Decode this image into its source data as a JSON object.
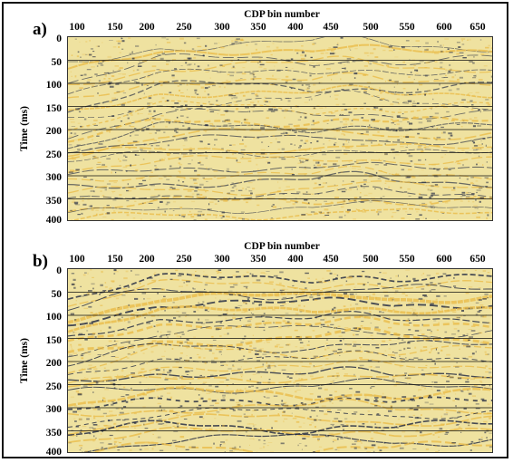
{
  "panels": [
    {
      "id": "a",
      "label": "a)",
      "x_axis_title": "CDP bin number",
      "y_axis_title": "Time (ms)",
      "x_ticks": [
        "100",
        "150",
        "200",
        "250",
        "300",
        "350",
        "400",
        "450",
        "500",
        "550",
        "600",
        "650"
      ],
      "y_ticks": [
        "0",
        "50",
        "100",
        "150",
        "200",
        "250",
        "300",
        "350",
        "400"
      ]
    },
    {
      "id": "b",
      "label": "b)",
      "x_axis_title": "CDP bin number",
      "y_axis_title": "Time (ms)",
      "x_ticks": [
        "100",
        "150",
        "200",
        "250",
        "300",
        "350",
        "400",
        "450",
        "500",
        "550",
        "600",
        "650"
      ],
      "y_ticks": [
        "0",
        "50",
        "100",
        "150",
        "200",
        "250",
        "300",
        "350",
        "400"
      ]
    }
  ],
  "colors": {
    "background": "#efe2a0",
    "trough": "#e9b944",
    "peak": "#1c2440",
    "grid": "#111111"
  }
}
